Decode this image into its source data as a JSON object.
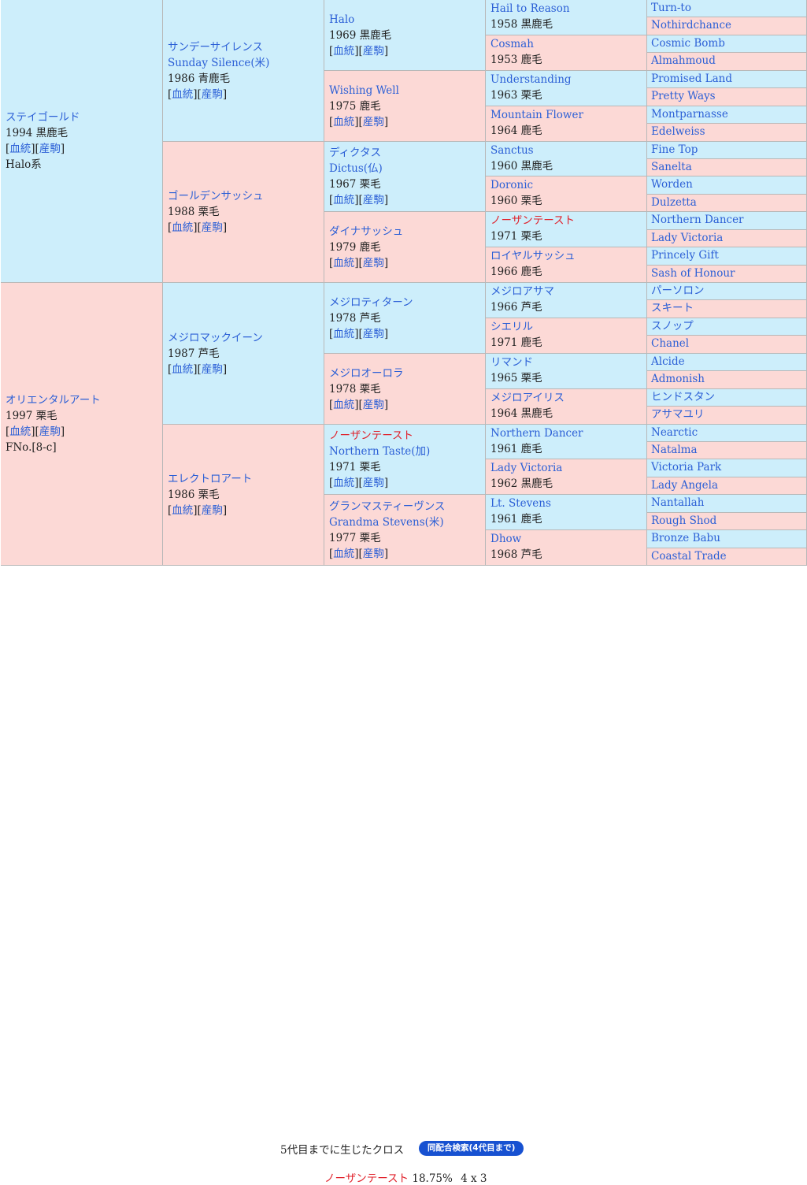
{
  "labels": {
    "bloodline": "血統",
    "record": "産駒"
  },
  "gen1": [
    {
      "name": "ステイゴールド",
      "year_color": "1994 黒鹿毛",
      "extra": "Halo系",
      "sex": "m"
    },
    {
      "name": "オリエンタルアート",
      "year_color": "1997 栗毛",
      "extra": "FNo.[8-c]",
      "sex": "f"
    }
  ],
  "gen2": [
    {
      "name": "サンデーサイレンス",
      "name2": "Sunday Silence(米)",
      "year_color": "1986 青鹿毛",
      "sex": "m"
    },
    {
      "name": "ゴールデンサッシュ",
      "year_color": "1988 栗毛",
      "sex": "f"
    },
    {
      "name": "メジロマックイーン",
      "year_color": "1987 芦毛",
      "sex": "m"
    },
    {
      "name": "エレクトロアート",
      "year_color": "1986 栗毛",
      "sex": "f"
    }
  ],
  "gen3": [
    {
      "name": "Halo",
      "year_color": "1969 黒鹿毛",
      "sex": "m"
    },
    {
      "name": "Wishing Well",
      "year_color": "1975 鹿毛",
      "sex": "f"
    },
    {
      "name": "ディクタス",
      "name2": "Dictus(仏)",
      "year_color": "1967 栗毛",
      "sex": "m"
    },
    {
      "name": "ダイナサッシュ",
      "year_color": "1979 鹿毛",
      "sex": "f"
    },
    {
      "name": "メジロティターン",
      "year_color": "1978 芦毛",
      "sex": "m"
    },
    {
      "name": "メジロオーロラ",
      "year_color": "1978 栗毛",
      "sex": "f"
    },
    {
      "name": "ノーザンテースト",
      "name2": "Northern Taste(加)",
      "year_color": "1971 栗毛",
      "sex": "m",
      "red": true
    },
    {
      "name": "グランマスティーヴンス",
      "name2": "Grandma Stevens(米)",
      "year_color": "1977 栗毛",
      "sex": "f"
    }
  ],
  "gen4": [
    {
      "name": "Hail to Reason",
      "year_color": "1958 黒鹿毛",
      "sex": "m"
    },
    {
      "name": "Cosmah",
      "year_color": "1953 鹿毛",
      "sex": "f"
    },
    {
      "name": "Understanding",
      "year_color": "1963 栗毛",
      "sex": "m"
    },
    {
      "name": "Mountain Flower",
      "year_color": "1964 鹿毛",
      "sex": "f"
    },
    {
      "name": "Sanctus",
      "year_color": "1960 黒鹿毛",
      "sex": "m"
    },
    {
      "name": "Doronic",
      "year_color": "1960 栗毛",
      "sex": "f"
    },
    {
      "name": "ノーザンテースト",
      "year_color": "1971 栗毛",
      "sex": "m",
      "red": true
    },
    {
      "name": "ロイヤルサッシュ",
      "year_color": "1966 鹿毛",
      "sex": "f"
    },
    {
      "name": "メジロアサマ",
      "year_color": "1966 芦毛",
      "sex": "m"
    },
    {
      "name": "シエリル",
      "year_color": "1971 鹿毛",
      "sex": "f"
    },
    {
      "name": "リマンド",
      "year_color": "1965 栗毛",
      "sex": "m"
    },
    {
      "name": "メジロアイリス",
      "year_color": "1964 黒鹿毛",
      "sex": "f"
    },
    {
      "name": "Northern Dancer",
      "year_color": "1961 鹿毛",
      "sex": "m"
    },
    {
      "name": "Lady Victoria",
      "year_color": "1962 黒鹿毛",
      "sex": "f"
    },
    {
      "name": "Lt. Stevens",
      "year_color": "1961 鹿毛",
      "sex": "m"
    },
    {
      "name": "Dhow",
      "year_color": "1968 芦毛",
      "sex": "f"
    }
  ],
  "gen5": [
    {
      "name": "Turn-to",
      "sex": "m"
    },
    {
      "name": "Nothirdchance",
      "sex": "f"
    },
    {
      "name": "Cosmic Bomb",
      "sex": "m"
    },
    {
      "name": "Almahmoud",
      "sex": "f"
    },
    {
      "name": "Promised Land",
      "sex": "m"
    },
    {
      "name": "Pretty Ways",
      "sex": "f"
    },
    {
      "name": "Montparnasse",
      "sex": "m"
    },
    {
      "name": "Edelweiss",
      "sex": "f"
    },
    {
      "name": "Fine Top",
      "sex": "m"
    },
    {
      "name": "Sanelta",
      "sex": "f"
    },
    {
      "name": "Worden",
      "sex": "m"
    },
    {
      "name": "Dulzetta",
      "sex": "f"
    },
    {
      "name": "Northern Dancer",
      "sex": "m"
    },
    {
      "name": "Lady Victoria",
      "sex": "f"
    },
    {
      "name": "Princely Gift",
      "sex": "m"
    },
    {
      "name": "Sash of Honour",
      "sex": "f"
    },
    {
      "name": "パーソロン",
      "sex": "m"
    },
    {
      "name": "スキート",
      "sex": "f"
    },
    {
      "name": "スノップ",
      "sex": "m"
    },
    {
      "name": "Chanel",
      "sex": "f"
    },
    {
      "name": "Alcide",
      "sex": "m"
    },
    {
      "name": "Admonish",
      "sex": "f"
    },
    {
      "name": "ヒンドスタン",
      "sex": "m"
    },
    {
      "name": "アサマユリ",
      "sex": "f"
    },
    {
      "name": "Nearctic",
      "sex": "m"
    },
    {
      "name": "Natalma",
      "sex": "f"
    },
    {
      "name": "Victoria Park",
      "sex": "m"
    },
    {
      "name": "Lady Angela",
      "sex": "f"
    },
    {
      "name": "Nantallah",
      "sex": "m"
    },
    {
      "name": "Rough Shod",
      "sex": "f"
    },
    {
      "name": "Bronze Babu",
      "sex": "m"
    },
    {
      "name": "Coastal Trade",
      "sex": "f"
    }
  ],
  "footer": {
    "cross_title": "5代目までに生じたクロス",
    "search_button": "同配合検索(4代目まで)",
    "cross": {
      "name": "ノーザンテースト",
      "percent": "18.75%",
      "pattern": "4 x 3"
    }
  }
}
